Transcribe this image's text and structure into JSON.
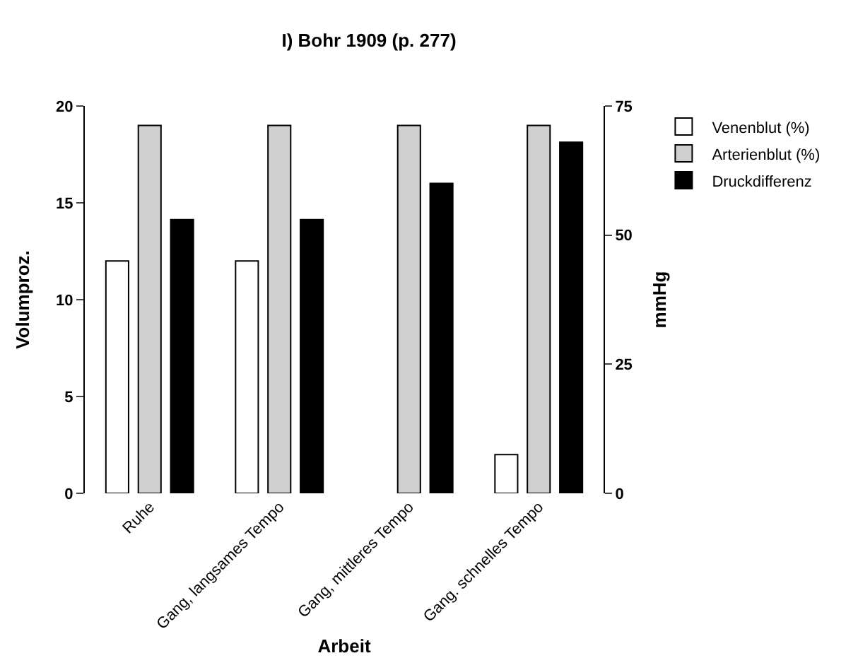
{
  "chart_data": {
    "type": "bar",
    "title": "I) Bohr 1909 (p. 277)",
    "xlabel": "Arbeit",
    "ylabel": "Volumproz.",
    "y2label": "mmHg",
    "categories": [
      "Ruhe",
      "Gang, langsames Tempo",
      "Gang, mittleres Tempo",
      "Gang. schnelles Tempo"
    ],
    "series": [
      {
        "name": "Venenblut (%)",
        "color": "#ffffff",
        "values": [
          12,
          12,
          null,
          2
        ]
      },
      {
        "name": "Arterienblut (%)",
        "color": "#d0d0d0",
        "values": [
          19,
          19,
          19,
          19
        ]
      },
      {
        "name": "Druckdifferenz",
        "color": "#000000",
        "values": [
          53,
          53,
          60,
          68
        ],
        "axis": "y2"
      }
    ],
    "ylim": [
      0,
      20
    ],
    "yticks": [
      0,
      5,
      10,
      15,
      20
    ],
    "y2lim": [
      0,
      75
    ],
    "y2ticks": [
      0,
      25,
      50,
      75
    ],
    "legend": "top right"
  }
}
